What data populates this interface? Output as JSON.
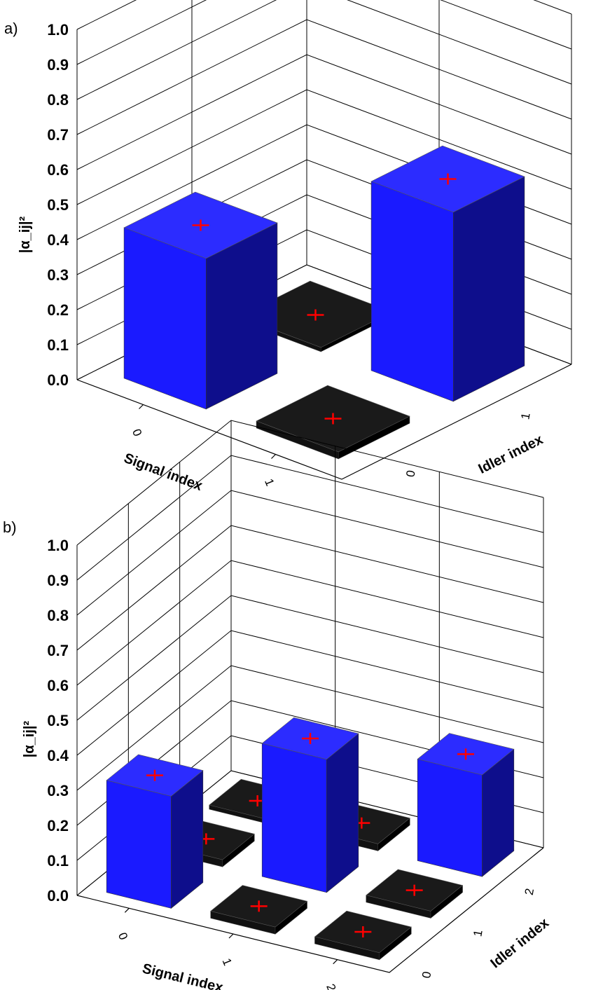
{
  "chart_data": [
    {
      "type": "bar3d",
      "panel_label": "a)",
      "zlabel": "|α_ij|²",
      "zlim": [
        0,
        1.0
      ],
      "z_ticks": [
        "0.0",
        "0.1",
        "0.2",
        "0.3",
        "0.4",
        "0.5",
        "0.6",
        "0.7",
        "0.8",
        "0.9",
        "1.0"
      ],
      "xlabel": "Signal index",
      "ylabel": "Idler index",
      "x_categories": [
        "0",
        "1"
      ],
      "y_categories": [
        "0",
        "1"
      ],
      "bars": [
        {
          "signal": 0,
          "idler": 0,
          "value": 0.43,
          "color": "#1a1aff"
        },
        {
          "signal": 0,
          "idler": 1,
          "value": 0.01,
          "color": "#000000"
        },
        {
          "signal": 1,
          "idler": 0,
          "value": 0.02,
          "color": "#000000"
        },
        {
          "signal": 1,
          "idler": 1,
          "value": 0.54,
          "color": "#1a1aff"
        }
      ],
      "marker": "+",
      "marker_color": "#ff0000",
      "grid": true
    },
    {
      "type": "bar3d",
      "panel_label": "b)",
      "zlabel": "|α_ij|²",
      "zlim": [
        0,
        1.0
      ],
      "z_ticks": [
        "0.0",
        "0.1",
        "0.2",
        "0.3",
        "0.4",
        "0.5",
        "0.6",
        "0.7",
        "0.8",
        "0.9",
        "1.0"
      ],
      "xlabel": "Signal index",
      "ylabel": "Idler index",
      "x_categories": [
        "0",
        "1",
        "2"
      ],
      "y_categories": [
        "0",
        "1",
        "2"
      ],
      "bars": [
        {
          "signal": 0,
          "idler": 0,
          "value": 0.32,
          "color": "#1a1aff"
        },
        {
          "signal": 0,
          "idler": 1,
          "value": 0.02,
          "color": "#000000"
        },
        {
          "signal": 0,
          "idler": 2,
          "value": 0.01,
          "color": "#000000"
        },
        {
          "signal": 1,
          "idler": 0,
          "value": 0.02,
          "color": "#000000"
        },
        {
          "signal": 1,
          "idler": 1,
          "value": 0.38,
          "color": "#1a1aff"
        },
        {
          "signal": 1,
          "idler": 2,
          "value": 0.02,
          "color": "#000000"
        },
        {
          "signal": 2,
          "idler": 0,
          "value": 0.02,
          "color": "#000000"
        },
        {
          "signal": 2,
          "idler": 1,
          "value": 0.02,
          "color": "#000000"
        },
        {
          "signal": 2,
          "idler": 2,
          "value": 0.29,
          "color": "#1a1aff"
        }
      ],
      "marker": "+",
      "marker_color": "#ff0000",
      "grid": true
    }
  ]
}
